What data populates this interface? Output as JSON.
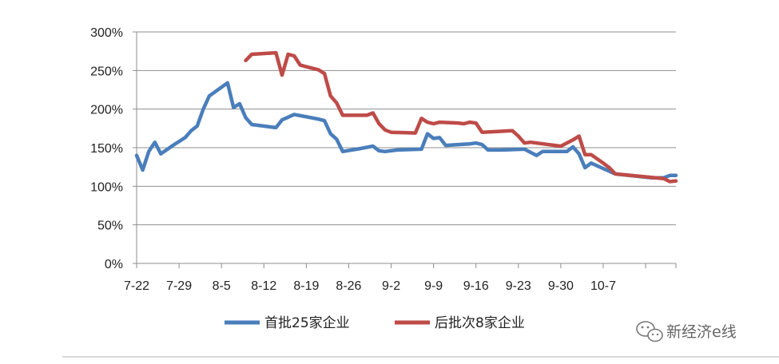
{
  "chart_data": {
    "type": "line",
    "ylim": [
      0,
      300
    ],
    "yticks": [
      "0%",
      "50%",
      "100%",
      "150%",
      "200%",
      "250%",
      "300%"
    ],
    "xticks": [
      "7-22",
      "7-29",
      "8-5",
      "8-12",
      "8-19",
      "8-26",
      "9-2",
      "9-9",
      "9-16",
      "9-23",
      "9-30",
      "10-7"
    ],
    "grid": true,
    "legend_position": "bottom",
    "series": [
      {
        "name": "首批25家企业",
        "color": "#4a7ebb",
        "points": [
          [
            0,
            140
          ],
          [
            1,
            121
          ],
          [
            2,
            145
          ],
          [
            3,
            157
          ],
          [
            4,
            142
          ],
          [
            6,
            153
          ],
          [
            8,
            163
          ],
          [
            9,
            172
          ],
          [
            10,
            178
          ],
          [
            11,
            200
          ],
          [
            12,
            217
          ],
          [
            15,
            234
          ],
          [
            16,
            202
          ],
          [
            17,
            207
          ],
          [
            18,
            189
          ],
          [
            19,
            180
          ],
          [
            23,
            176
          ],
          [
            24,
            186
          ],
          [
            26,
            193
          ],
          [
            30,
            187
          ],
          [
            31,
            185
          ],
          [
            32,
            168
          ],
          [
            33,
            161
          ],
          [
            34,
            145
          ],
          [
            37,
            149
          ],
          [
            39,
            152
          ],
          [
            40,
            146
          ],
          [
            41,
            145
          ],
          [
            43,
            147
          ],
          [
            47,
            148
          ],
          [
            48,
            168
          ],
          [
            49,
            162
          ],
          [
            50,
            163
          ],
          [
            51,
            153
          ],
          [
            55,
            155
          ],
          [
            56,
            156
          ],
          [
            57,
            154
          ],
          [
            58,
            147
          ],
          [
            60,
            147
          ],
          [
            64,
            148
          ],
          [
            66,
            140
          ],
          [
            67,
            145
          ],
          [
            71,
            145
          ],
          [
            72,
            151
          ],
          [
            73,
            142
          ],
          [
            74,
            124
          ],
          [
            75,
            130
          ],
          [
            79,
            116
          ],
          [
            85,
            111
          ],
          [
            87,
            111
          ],
          [
            88,
            114
          ],
          [
            89,
            114
          ]
        ]
      },
      {
        "name": "后批次8家企业",
        "color": "#be4b48",
        "points": [
          [
            18,
            263
          ],
          [
            19,
            271
          ],
          [
            23,
            273
          ],
          [
            24,
            244
          ],
          [
            25,
            271
          ],
          [
            26,
            269
          ],
          [
            27,
            257
          ],
          [
            30,
            251
          ],
          [
            31,
            246
          ],
          [
            32,
            217
          ],
          [
            33,
            208
          ],
          [
            34,
            192
          ],
          [
            38,
            192
          ],
          [
            39,
            195
          ],
          [
            40,
            181
          ],
          [
            41,
            173
          ],
          [
            42,
            170
          ],
          [
            46,
            169
          ],
          [
            47,
            188
          ],
          [
            48,
            183
          ],
          [
            49,
            181
          ],
          [
            50,
            183
          ],
          [
            53,
            182
          ],
          [
            54,
            181
          ],
          [
            55,
            183
          ],
          [
            56,
            182
          ],
          [
            57,
            170
          ],
          [
            62,
            172
          ],
          [
            63,
            165
          ],
          [
            64,
            156
          ],
          [
            65,
            157
          ],
          [
            70,
            152
          ],
          [
            72,
            160
          ],
          [
            73,
            165
          ],
          [
            74,
            141
          ],
          [
            75,
            141
          ],
          [
            77,
            130
          ],
          [
            78,
            124
          ],
          [
            79,
            116
          ],
          [
            87,
            110
          ],
          [
            88,
            106
          ],
          [
            89,
            107
          ]
        ]
      }
    ]
  },
  "watermark": {
    "text": "新经济e线",
    "icon": "wechat-icon"
  }
}
